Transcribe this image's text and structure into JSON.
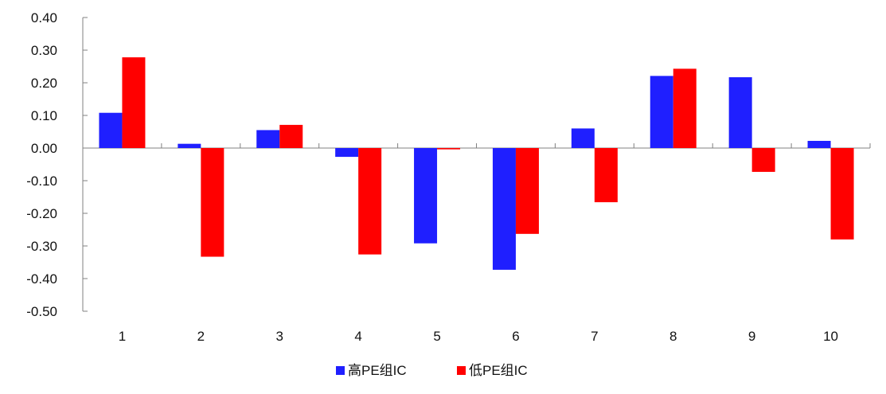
{
  "chart_data": {
    "type": "bar",
    "title": "",
    "xlabel": "",
    "ylabel": "",
    "categories": [
      "1",
      "2",
      "3",
      "4",
      "5",
      "6",
      "7",
      "8",
      "9",
      "10"
    ],
    "ylim": [
      -0.5,
      0.4
    ],
    "y_ticks": [
      "0.40",
      "0.30",
      "0.20",
      "0.10",
      "0.00",
      "-0.10",
      "-0.20",
      "-0.30",
      "-0.40",
      "-0.50"
    ],
    "grid": false,
    "legend_position": "bottom",
    "series": [
      {
        "name": "高PE组IC",
        "color": "#1f1fff",
        "values": [
          0.108,
          0.013,
          0.055,
          -0.027,
          -0.292,
          -0.373,
          0.06,
          0.221,
          0.217,
          0.022
        ]
      },
      {
        "name": "低PE组IC",
        "color": "#ff0000",
        "values": [
          0.278,
          -0.333,
          0.071,
          -0.326,
          -0.004,
          -0.263,
          -0.166,
          0.243,
          -0.073,
          -0.28
        ]
      }
    ]
  }
}
